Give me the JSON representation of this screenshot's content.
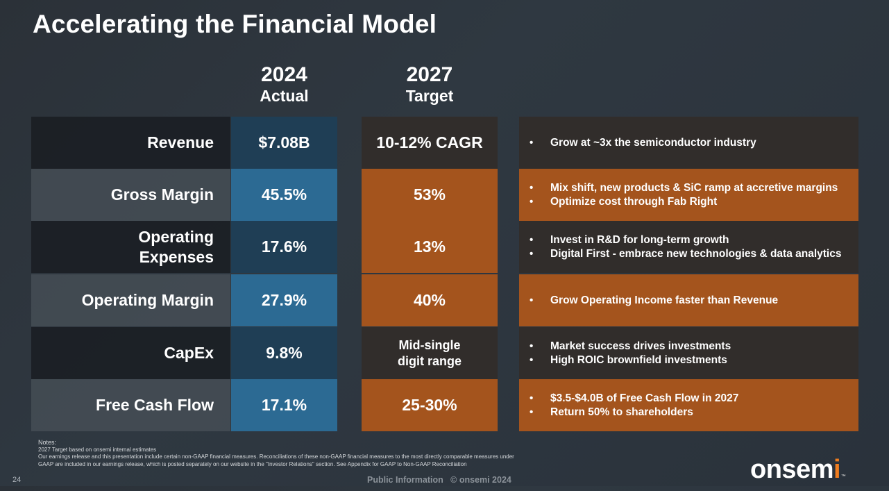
{
  "title": "Accelerating the Financial Model",
  "columns": {
    "actual": {
      "year": "2024",
      "label": "Actual"
    },
    "target": {
      "year": "2027",
      "label": "Target"
    }
  },
  "rows": [
    {
      "label": "Revenue",
      "actual": "$7.08B",
      "target": "10-12% CAGR",
      "bullets": [
        "Grow at ~3x the semiconductor industry"
      ]
    },
    {
      "label": "Gross Margin",
      "actual": "45.5%",
      "target": "53%",
      "bullets": [
        "Mix shift, new products & SiC ramp at accretive margins",
        "Optimize cost through Fab Right"
      ]
    },
    {
      "label": "Operating Expenses",
      "actual": "17.6%",
      "target": "13%",
      "bullets": [
        "Invest in R&D for long-term growth",
        "Digital First - embrace new technologies & data analytics"
      ]
    },
    {
      "label": "Operating Margin",
      "actual": "27.9%",
      "target": "40%",
      "bullets": [
        "Grow Operating Income faster than Revenue"
      ]
    },
    {
      "label": "CapEx",
      "actual": "9.8%",
      "target": "Mid-single digit range",
      "bullets": [
        "Market success drives investments",
        "High ROIC brownfield investments"
      ]
    },
    {
      "label": "Free Cash Flow",
      "actual": "17.1%",
      "target": "25-30%",
      "bullets": [
        "$3.5-$4.0B of Free Cash Flow in 2027",
        "Return 50% to shareholders"
      ]
    }
  ],
  "notes": {
    "heading": "Notes:",
    "lines": [
      "2027 Target based on onsemi internal estimates",
      "Our earnings release and this presentation include certain non-GAAP financial measures. Reconciliations of these non-GAAP financial measures to the most directly comparable measures under GAAP are included in our earnings release, which is posted separately on our website in the \"Investor Relations\" section. See Appendix for GAAP to Non-GAAP Reconciliation"
    ]
  },
  "footer": {
    "page_number": "24",
    "classification": "Public Information   © onsemi 2024"
  },
  "logo": {
    "text": "onsemi",
    "accent_color": "#f07d1f"
  },
  "colors": {
    "actual_dark": "#1f3e55",
    "actual_light": "#2c6a93",
    "target_orange": "#a4541d",
    "target_dark": "#312d2b"
  }
}
